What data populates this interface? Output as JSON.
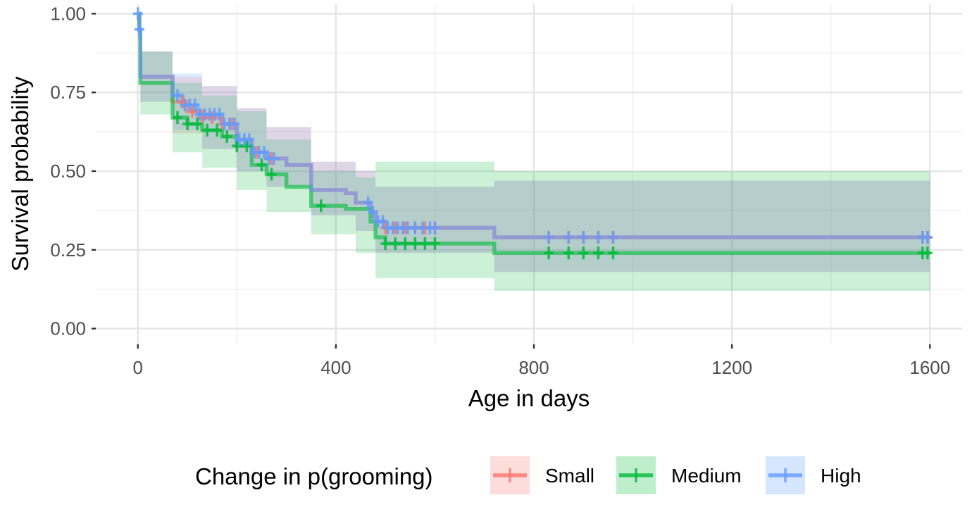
{
  "chart_data": {
    "type": "line",
    "subtype": "kaplan-meier survival curve with confidence bands and censor marks",
    "xlabel": "Age in days",
    "ylabel": "Survival probability",
    "xlim": [
      -85,
      1665
    ],
    "ylim": [
      -0.05,
      1.03
    ],
    "xticks": [
      0,
      400,
      800,
      1200,
      1600
    ],
    "xtick_labels": [
      "0",
      "400",
      "800",
      "1200",
      "1600"
    ],
    "yticks": [
      0.0,
      0.25,
      0.5,
      0.75,
      1.0
    ],
    "ytick_labels": [
      "0.00",
      "0.25",
      "0.50",
      "0.75",
      "1.00"
    ],
    "grid": true,
    "legend": {
      "title": "Change in p(grooming)",
      "position": "bottom"
    },
    "series": [
      {
        "name": "Small",
        "color": "#F8766D",
        "steps": [
          [
            0,
            1.0
          ],
          [
            3,
            0.95
          ],
          [
            5,
            0.8
          ],
          [
            70,
            0.72
          ],
          [
            100,
            0.69
          ],
          [
            130,
            0.67
          ],
          [
            170,
            0.65
          ],
          [
            200,
            0.6
          ],
          [
            230,
            0.56
          ],
          [
            260,
            0.54
          ],
          [
            300,
            0.52
          ],
          [
            350,
            0.44
          ],
          [
            420,
            0.43
          ],
          [
            440,
            0.4
          ],
          [
            470,
            0.37
          ],
          [
            480,
            0.34
          ],
          [
            500,
            0.32
          ],
          [
            720,
            0.29
          ],
          [
            1600,
            0.29
          ]
        ],
        "lower": [
          [
            0,
            0.94
          ],
          [
            5,
            0.72
          ],
          [
            70,
            0.62
          ],
          [
            130,
            0.57
          ],
          [
            200,
            0.5
          ],
          [
            260,
            0.45
          ],
          [
            350,
            0.36
          ],
          [
            440,
            0.31
          ],
          [
            480,
            0.24
          ],
          [
            720,
            0.18
          ],
          [
            1600,
            0.18
          ]
        ],
        "upper": [
          [
            0,
            1.0
          ],
          [
            5,
            0.88
          ],
          [
            70,
            0.8
          ],
          [
            130,
            0.77
          ],
          [
            200,
            0.7
          ],
          [
            260,
            0.64
          ],
          [
            350,
            0.53
          ],
          [
            440,
            0.5
          ],
          [
            480,
            0.45
          ],
          [
            720,
            0.47
          ],
          [
            1600,
            0.47
          ]
        ],
        "censor_x": [
          90,
          110,
          130,
          150,
          170,
          190,
          240,
          270,
          500,
          520,
          540,
          560,
          580,
          600,
          830,
          870,
          900,
          930,
          960,
          1585,
          1595
        ]
      },
      {
        "name": "Medium",
        "color": "#00BA38",
        "steps": [
          [
            0,
            1.0
          ],
          [
            3,
            0.95
          ],
          [
            5,
            0.78
          ],
          [
            70,
            0.67
          ],
          [
            100,
            0.65
          ],
          [
            130,
            0.63
          ],
          [
            170,
            0.61
          ],
          [
            200,
            0.58
          ],
          [
            230,
            0.52
          ],
          [
            260,
            0.49
          ],
          [
            300,
            0.45
          ],
          [
            350,
            0.39
          ],
          [
            420,
            0.38
          ],
          [
            470,
            0.34
          ],
          [
            480,
            0.29
          ],
          [
            500,
            0.27
          ],
          [
            720,
            0.24
          ],
          [
            1600,
            0.24
          ]
        ],
        "lower": [
          [
            0,
            0.92
          ],
          [
            5,
            0.68
          ],
          [
            70,
            0.56
          ],
          [
            130,
            0.51
          ],
          [
            200,
            0.44
          ],
          [
            260,
            0.37
          ],
          [
            350,
            0.3
          ],
          [
            440,
            0.24
          ],
          [
            480,
            0.16
          ],
          [
            720,
            0.12
          ],
          [
            1600,
            0.12
          ]
        ],
        "upper": [
          [
            0,
            1.0
          ],
          [
            5,
            0.88
          ],
          [
            70,
            0.78
          ],
          [
            130,
            0.74
          ],
          [
            200,
            0.69
          ],
          [
            260,
            0.6
          ],
          [
            350,
            0.5
          ],
          [
            440,
            0.48
          ],
          [
            480,
            0.53
          ],
          [
            720,
            0.5
          ],
          [
            1600,
            0.5
          ]
        ],
        "censor_x": [
          80,
          100,
          120,
          140,
          160,
          180,
          200,
          220,
          250,
          270,
          370,
          500,
          520,
          540,
          560,
          580,
          600,
          830,
          870,
          900,
          930,
          960,
          1585,
          1595
        ]
      },
      {
        "name": "High",
        "color": "#619CFF",
        "steps": [
          [
            0,
            1.0
          ],
          [
            3,
            0.95
          ],
          [
            5,
            0.8
          ],
          [
            70,
            0.74
          ],
          [
            90,
            0.71
          ],
          [
            120,
            0.68
          ],
          [
            170,
            0.65
          ],
          [
            200,
            0.6
          ],
          [
            230,
            0.56
          ],
          [
            260,
            0.54
          ],
          [
            300,
            0.52
          ],
          [
            350,
            0.44
          ],
          [
            420,
            0.43
          ],
          [
            440,
            0.4
          ],
          [
            470,
            0.37
          ],
          [
            480,
            0.34
          ],
          [
            500,
            0.32
          ],
          [
            720,
            0.29
          ],
          [
            1600,
            0.29
          ]
        ],
        "lower": [
          [
            0,
            0.94
          ],
          [
            5,
            0.72
          ],
          [
            70,
            0.63
          ],
          [
            130,
            0.57
          ],
          [
            200,
            0.5
          ],
          [
            260,
            0.45
          ],
          [
            350,
            0.36
          ],
          [
            440,
            0.31
          ],
          [
            480,
            0.24
          ],
          [
            720,
            0.18
          ],
          [
            1600,
            0.18
          ]
        ],
        "upper": [
          [
            0,
            1.0
          ],
          [
            5,
            0.88
          ],
          [
            70,
            0.81
          ],
          [
            130,
            0.77
          ],
          [
            200,
            0.7
          ],
          [
            260,
            0.64
          ],
          [
            350,
            0.53
          ],
          [
            440,
            0.5
          ],
          [
            480,
            0.45
          ],
          [
            720,
            0.47
          ],
          [
            1600,
            0.47
          ]
        ],
        "censor_x": [
          0,
          3,
          80,
          95,
          105,
          115,
          125,
          135,
          145,
          155,
          165,
          175,
          185,
          195,
          205,
          215,
          225,
          235,
          245,
          255,
          265,
          275,
          465,
          475,
          485,
          495,
          505,
          515,
          525,
          535,
          545,
          560,
          575,
          590,
          600,
          830,
          870,
          900,
          930,
          960,
          1585,
          1595
        ]
      }
    ]
  }
}
